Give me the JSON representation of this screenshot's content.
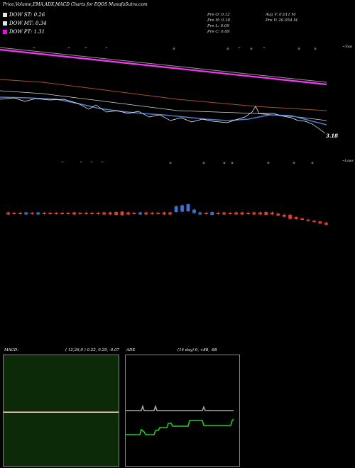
{
  "header": {
    "title": "Price,Volume,EMA,ADX,MACD Charts for EQOS MunafaSutra.com"
  },
  "legend": [
    {
      "label": "DOW ST: 0.26",
      "color": "#e6e6e6"
    },
    {
      "label": "DOW MT: 0.34",
      "color": "#e6e6e6"
    },
    {
      "label": "DOW PT: 1.31",
      "color": "#ff00ff"
    }
  ],
  "stats": {
    "prev_open": "Pre   O: 0.12",
    "prev_high": "Pre   H: 0.18",
    "prev_low": "Pre   L: 0.09",
    "prev_close": "Pre   C: 0.09",
    "avg_volume": "Avg V: 0.011  M",
    "prev_volume": "Pre   V: 20.054  M"
  },
  "axis": {
    "top_label": "~Tops",
    "low_label": "~Lows",
    "last_price": "3.18"
  },
  "macd": {
    "title_left": "MACD:",
    "title_right": "( 12,26,9 ) 0.22, 0.29, -0.07"
  },
  "adx": {
    "title_left": "ADX",
    "title_right": "(14  day) 0, +88, -88"
  },
  "chart_data": [
    {
      "type": "line",
      "title": "Price,Volume,EMA,ADX,MACD Charts for EQOS MunafaSutra.com",
      "series": [
        {
          "name": "DOW PT",
          "color": "#ff00ff",
          "values": [
            1.31,
            0.25
          ]
        },
        {
          "name": "DOW MT",
          "color": "#e6e6e6",
          "values": [
            0.34,
            0.1
          ]
        },
        {
          "name": "DOW ST",
          "color": "#e6e6e6",
          "values": [
            0.26,
            0.09
          ]
        }
      ],
      "last_price": 3.18,
      "volume_bars": {
        "colors": [
          "#d32",
          "#d32",
          "#d32",
          "#36c",
          "#d32",
          "#36c",
          "#d32",
          "#d32",
          "#d32",
          "#d32",
          "#d32",
          "#d32",
          "#d32",
          "#d32",
          "#d32",
          "#d32",
          "#d32",
          "#d32",
          "#d32",
          "#d32",
          "#d32",
          "#d32",
          "#36c",
          "#d32",
          "#d32",
          "#d32",
          "#d32",
          "#d32",
          "#36c",
          "#36c",
          "#36c",
          "#36c",
          "#36c",
          "#d32",
          "#36c",
          "#d32",
          "#d32",
          "#d32",
          "#d32",
          "#d32",
          "#d32",
          "#d32",
          "#d32",
          "#d32",
          "#d32",
          "#d32",
          "#d32",
          "#d32",
          "#d32",
          "#d32",
          "#d32",
          "#d32",
          "#d32",
          "#d32"
        ],
        "heights": [
          3,
          2,
          2,
          3,
          2,
          3,
          2,
          2,
          2,
          2,
          2,
          3,
          2,
          2,
          2,
          2,
          3,
          3,
          4,
          5,
          3,
          2,
          3,
          3,
          2,
          2,
          3,
          3,
          8,
          9,
          10,
          5,
          3,
          2,
          4,
          2,
          3,
          2,
          3,
          3,
          2,
          3,
          3,
          4,
          3,
          3,
          3,
          6,
          3,
          2,
          2,
          2,
          3,
          3
        ]
      }
    },
    {
      "type": "line",
      "title": "MACD",
      "params": [
        12,
        26,
        9
      ],
      "macd": 0.22,
      "signal": 0.29,
      "histogram": -0.07
    },
    {
      "type": "line",
      "title": "ADX",
      "period_days": 14,
      "adx": 0,
      "plus_di": 88,
      "minus_di": -88
    }
  ]
}
